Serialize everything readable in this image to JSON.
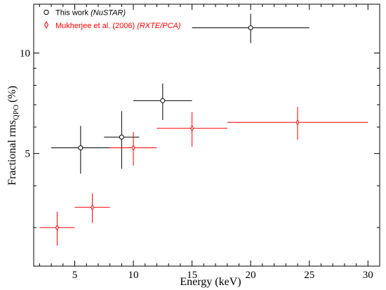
{
  "chart_data": {
    "type": "scatter",
    "xlabel": "Energy (keV)",
    "ylabel": {
      "main": "Fractional rms",
      "sub": "QPO",
      "unit": "(%)"
    },
    "xlim": [
      1.5,
      31
    ],
    "ylim": [
      2.3,
      14.0
    ],
    "yscale": "log",
    "x_ticks": [
      5,
      10,
      15,
      20,
      25,
      30
    ],
    "y_major_ticks": [
      5,
      10
    ],
    "y_minor_ticks": [
      3,
      4,
      6,
      7,
      8,
      9
    ],
    "grid": false,
    "legend_position": "top-left",
    "series": [
      {
        "name": "This work",
        "name_suffix": "(NuSTAR)",
        "color": "#000000",
        "marker": "circle",
        "points": [
          {
            "x": 5.5,
            "xerr": [
              2.5,
              2.5
            ],
            "y": 5.2,
            "yerr": [
              0.85,
              0.85
            ]
          },
          {
            "x": 9.0,
            "xerr": [
              1.5,
              1.5
            ],
            "y": 5.6,
            "yerr": [
              1.1,
              1.1
            ]
          },
          {
            "x": 12.5,
            "xerr": [
              2.5,
              2.5
            ],
            "y": 7.2,
            "yerr": [
              0.9,
              0.9
            ]
          },
          {
            "x": 20.0,
            "xerr": [
              5.0,
              5.0
            ],
            "y": 11.9,
            "yerr": [
              1.2,
              1.2
            ]
          }
        ]
      },
      {
        "name": "Mukherjee et al. (2006)",
        "name_suffix": "(RXTE/PCA)",
        "color": "#ff0000",
        "marker": "diamond",
        "points": [
          {
            "x": 3.5,
            "xerr": [
              1.5,
              1.5
            ],
            "y": 3.0,
            "yerr": [
              0.35,
              0.35
            ]
          },
          {
            "x": 6.5,
            "xerr": [
              1.5,
              1.5
            ],
            "y": 3.45,
            "yerr": [
              0.35,
              0.35
            ]
          },
          {
            "x": 10.0,
            "xerr": [
              2.0,
              2.0
            ],
            "y": 5.2,
            "yerr": [
              0.6,
              0.6
            ]
          },
          {
            "x": 15.0,
            "xerr": [
              3.0,
              3.0
            ],
            "y": 5.95,
            "yerr": [
              0.7,
              0.7
            ]
          },
          {
            "x": 24.0,
            "xerr": [
              6.0,
              6.0
            ],
            "y": 6.2,
            "yerr": [
              0.7,
              0.7
            ]
          }
        ]
      }
    ]
  }
}
